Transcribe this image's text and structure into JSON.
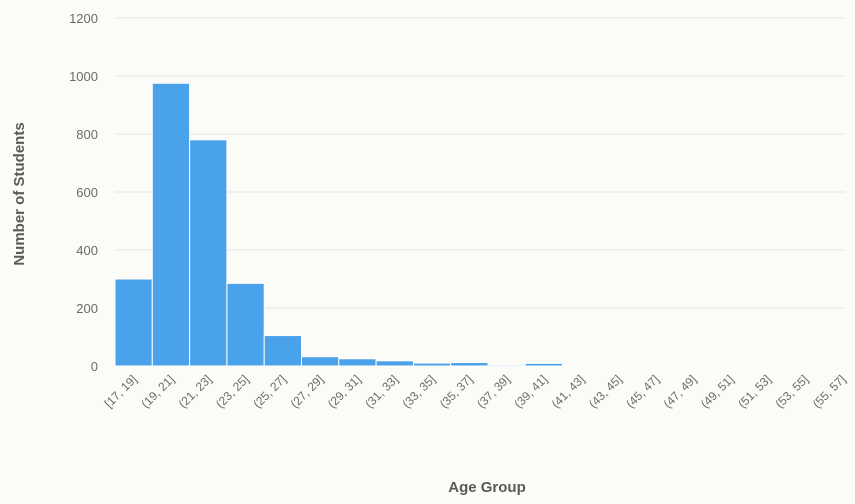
{
  "chart_data": {
    "type": "bar",
    "title": "",
    "xlabel": "Age Group",
    "ylabel": "Number of Students",
    "ylim": [
      0,
      1200
    ],
    "yticks": [
      "0",
      "200",
      "400",
      "600",
      "800",
      "1000",
      "1200"
    ],
    "grid": true,
    "legend": "none",
    "bar_color": "#4aa3ea",
    "categories": [
      "[17, 19]",
      "(19, 21]",
      "(21, 23]",
      "(23, 25]",
      "(25, 27]",
      "(27, 29]",
      "(29, 31]",
      "(31, 33]",
      "(33, 35]",
      "(35, 37]",
      "(37, 39]",
      "(39, 41]",
      "(41, 43]",
      "(43, 45]",
      "(45, 47]",
      "(47, 49]",
      "(49, 51]",
      "(51, 53]",
      "(53, 55]",
      "(55, 57]"
    ],
    "values": [
      300,
      975,
      780,
      285,
      105,
      32,
      25,
      18,
      10,
      12,
      4,
      9,
      3,
      2,
      1,
      1,
      1,
      1,
      1,
      1
    ]
  }
}
